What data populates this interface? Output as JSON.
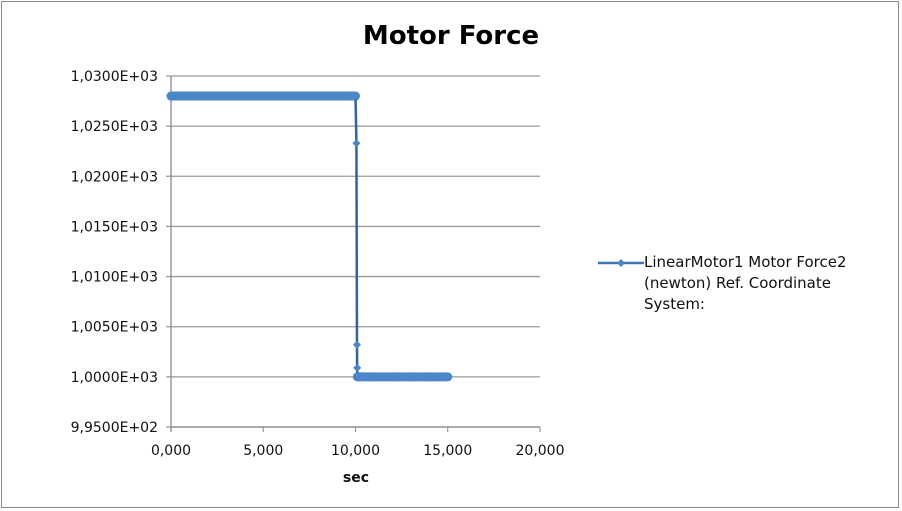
{
  "chart_data": {
    "type": "line",
    "title": "Motor Force",
    "xlabel": "sec",
    "ylabel": "",
    "xlim": [
      0,
      20000
    ],
    "ylim": [
      995,
      1030
    ],
    "x_ticks": [
      0,
      5000,
      10000,
      15000,
      20000
    ],
    "x_tick_labels": [
      "0,000",
      "5,000",
      "10,000",
      "15,000",
      "20,000"
    ],
    "y_ticks": [
      995,
      1000,
      1005,
      1010,
      1015,
      1020,
      1025,
      1030
    ],
    "y_tick_labels": [
      "9,9500E+02",
      "1,0000E+03",
      "1,0050E+03",
      "1,0100E+03",
      "1,0150E+03",
      "1,0200E+03",
      "1,0250E+03",
      "1,0300E+03"
    ],
    "grid": "horizontal",
    "legend_placement": "right",
    "series": [
      {
        "name": "LinearMotor1 Motor Force2 (newton) Ref. Coordinate System:",
        "color": "#4a86c8",
        "points": [
          [
            0,
            1028
          ],
          [
            1000,
            1028
          ],
          [
            2000,
            1028
          ],
          [
            3000,
            1028
          ],
          [
            4000,
            1028
          ],
          [
            5000,
            1028
          ],
          [
            6000,
            1028
          ],
          [
            7000,
            1028
          ],
          [
            8000,
            1028
          ],
          [
            9000,
            1028
          ],
          [
            10000,
            1028
          ],
          [
            10050,
            1023.3
          ],
          [
            10080,
            1003.2
          ],
          [
            10090,
            1000.9
          ],
          [
            10100,
            1000
          ],
          [
            11000,
            1000
          ],
          [
            12000,
            1000
          ],
          [
            13000,
            1000
          ],
          [
            14000,
            1000
          ],
          [
            15000,
            1000
          ]
        ]
      }
    ]
  }
}
